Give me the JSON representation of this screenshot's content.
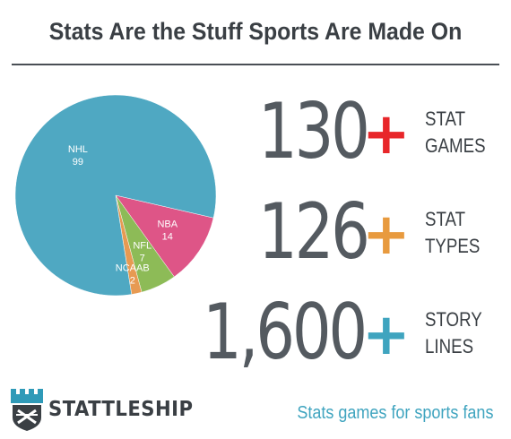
{
  "header": {
    "title": "Stats Are the Stuff Sports Are Made On"
  },
  "chart_data": {
    "type": "pie",
    "categories": [
      "NHL",
      "NBA",
      "NFL",
      "NCAAB"
    ],
    "values": [
      99,
      14,
      7,
      2
    ],
    "colors": [
      "#4fa8c2",
      "#de5587",
      "#8dbb57",
      "#e79a52"
    ],
    "labels_shown": true,
    "legend": "none"
  },
  "stats": [
    {
      "number": "130",
      "plus": "+",
      "plus_color": "#e8262a",
      "line1": "STAT",
      "line2": "GAMES"
    },
    {
      "number": "126",
      "plus": "+",
      "plus_color": "#e89a3e",
      "line1": "STAT",
      "line2": "TYPES"
    },
    {
      "number": "1,600",
      "plus": "+",
      "plus_color": "#3fa4bf",
      "line1": "STORY",
      "line2": "LINES"
    }
  ],
  "footer": {
    "brand": "STATTLESHIP",
    "tagline": "Stats games for sports fans",
    "logo_icon": "castle-shield-icon"
  }
}
